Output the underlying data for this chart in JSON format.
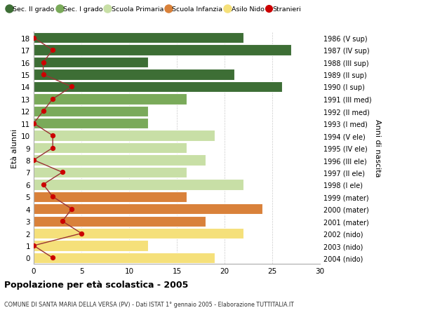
{
  "ages": [
    18,
    17,
    16,
    15,
    14,
    13,
    12,
    11,
    10,
    9,
    8,
    7,
    6,
    5,
    4,
    3,
    2,
    1,
    0
  ],
  "years": [
    "1986 (V sup)",
    "1987 (IV sup)",
    "1988 (III sup)",
    "1989 (II sup)",
    "1990 (I sup)",
    "1991 (III med)",
    "1992 (II med)",
    "1993 (I med)",
    "1994 (V ele)",
    "1995 (IV ele)",
    "1996 (III ele)",
    "1997 (II ele)",
    "1998 (I ele)",
    "1999 (mater)",
    "2000 (mater)",
    "2001 (mater)",
    "2002 (nido)",
    "2003 (nido)",
    "2004 (nido)"
  ],
  "bar_values": [
    22,
    27,
    12,
    21,
    26,
    16,
    12,
    12,
    19,
    16,
    18,
    16,
    22,
    16,
    24,
    18,
    22,
    12,
    19
  ],
  "bar_colors": [
    "#3d6e35",
    "#3d6e35",
    "#3d6e35",
    "#3d6e35",
    "#3d6e35",
    "#7aaa5a",
    "#7aaa5a",
    "#7aaa5a",
    "#c8dfa6",
    "#c8dfa6",
    "#c8dfa6",
    "#c8dfa6",
    "#c8dfa6",
    "#d9813a",
    "#d9813a",
    "#d9813a",
    "#f5e07a",
    "#f5e07a",
    "#f5e07a"
  ],
  "stranieri_values": [
    0,
    2,
    1,
    1,
    4,
    2,
    1,
    0,
    2,
    2,
    0,
    3,
    1,
    2,
    4,
    3,
    5,
    0,
    2
  ],
  "legend_labels": [
    "Sec. II grado",
    "Sec. I grado",
    "Scuola Primaria",
    "Scuola Infanzia",
    "Asilo Nido",
    "Stranieri"
  ],
  "legend_colors": [
    "#3d6e35",
    "#7aaa5a",
    "#c8dfa6",
    "#d9813a",
    "#f5e07a",
    "#cc0000"
  ],
  "ylabel_left": "Età alunni",
  "ylabel_right": "Anni di nascita",
  "title": "Popolazione per età scolastica - 2005",
  "subtitle": "COMUNE DI SANTA MARIA DELLA VERSA (PV) - Dati ISTAT 1° gennaio 2005 - Elaborazione TUTTITALIA.IT",
  "xlim": [
    0,
    30
  ],
  "background_color": "#ffffff",
  "grid_color": "#cccccc",
  "stranieri_color": "#cc0000",
  "stranieri_line_color": "#993333"
}
